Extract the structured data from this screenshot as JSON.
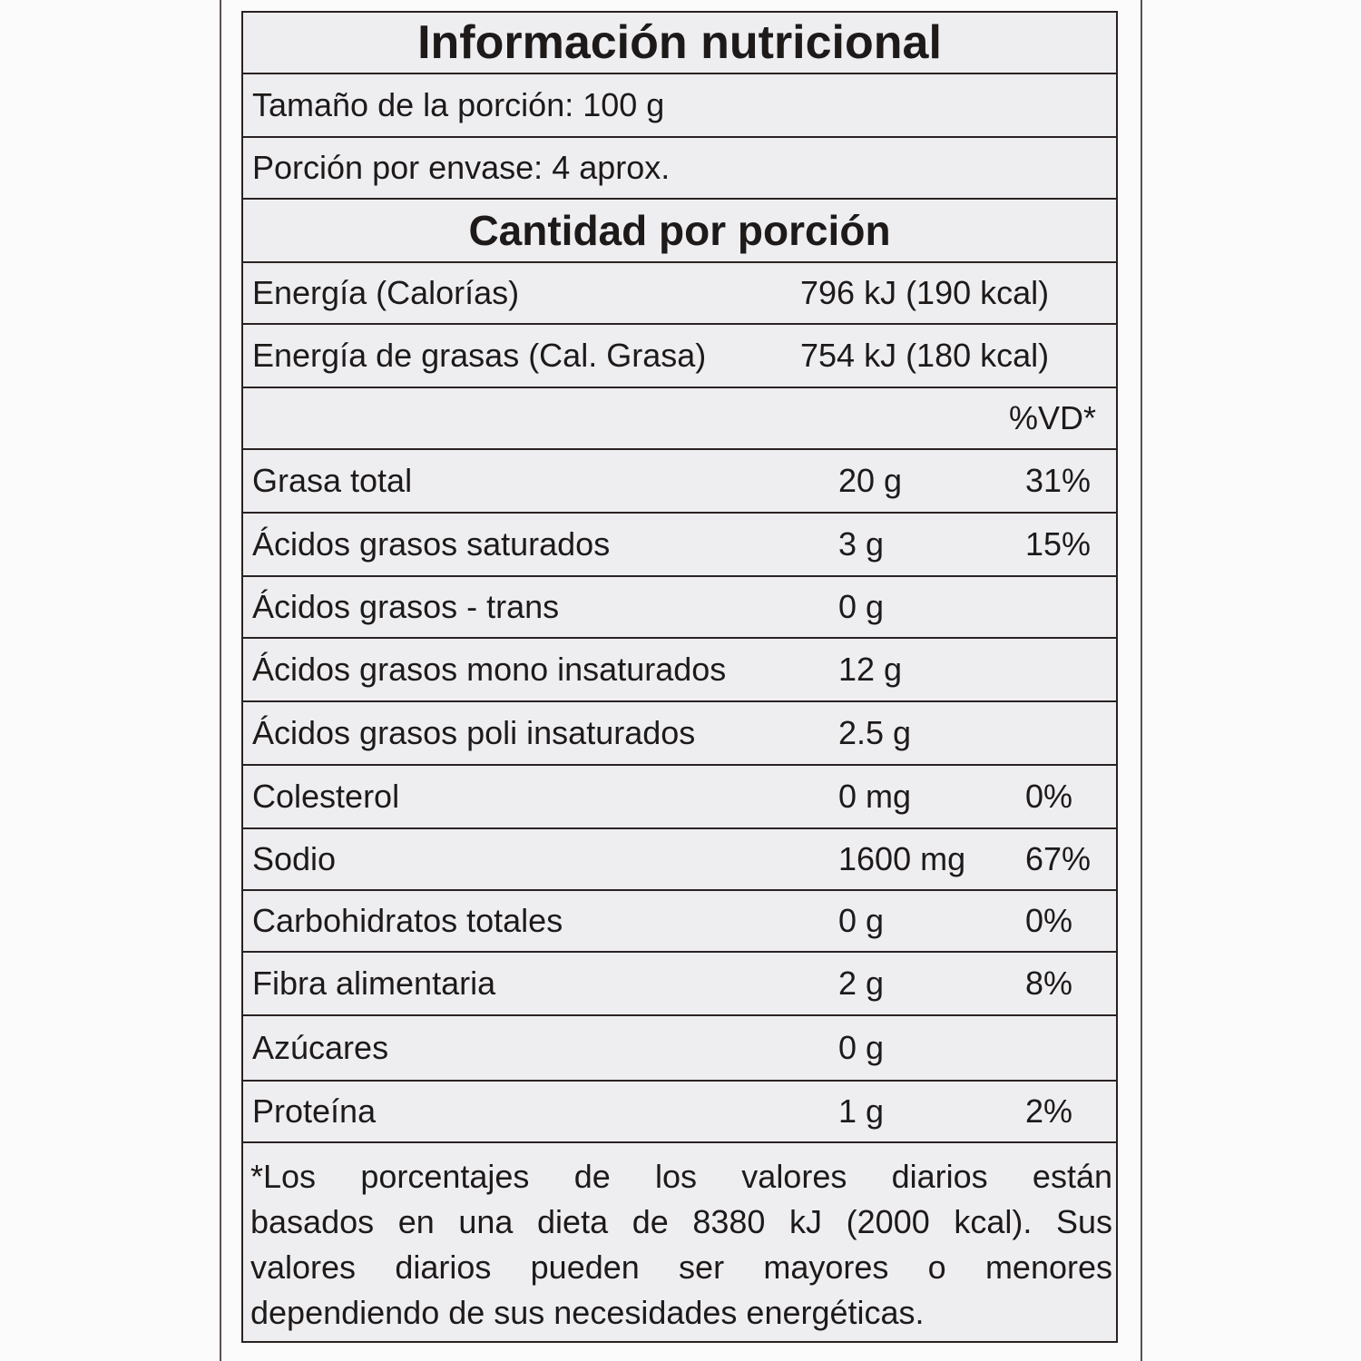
{
  "title": "Información nutricional",
  "serving_size": "Tamaño de la porción: 100 g",
  "servings_per_container": "Porción por envase: 4 aprox.",
  "amount_header": "Cantidad por porción",
  "energy": [
    {
      "label": "Energía (Calorías)",
      "value": "796 kJ (190 kcal)"
    },
    {
      "label": "Energía de grasas (Cal. Grasa)",
      "value": "754 kJ (180 kcal)"
    }
  ],
  "dv_header": "%VD*",
  "nutrients": [
    {
      "label": "Grasa total",
      "amount": "20 g",
      "dv": "31%"
    },
    {
      "label": "Ácidos grasos saturados",
      "amount": "3 g",
      "dv": "15%"
    },
    {
      "label": "Ácidos grasos - trans",
      "amount": "0 g",
      "dv": ""
    },
    {
      "label": "Ácidos grasos mono insaturados",
      "amount": "12 g",
      "dv": ""
    },
    {
      "label": "Ácidos grasos poli insaturados",
      "amount": "2.5 g",
      "dv": ""
    },
    {
      "label": "Colesterol",
      "amount": "0 mg",
      "dv": "0%"
    },
    {
      "label": "Sodio",
      "amount": "1600 mg",
      "dv": "67%"
    },
    {
      "label": "Carbohidratos totales",
      "amount": "0 g",
      "dv": "0%"
    },
    {
      "label": "Fibra alimentaria",
      "amount": "2 g",
      "dv": "8%"
    },
    {
      "label": "Azúcares",
      "amount": "0 g",
      "dv": ""
    },
    {
      "label": "Proteína",
      "amount": "1 g",
      "dv": "2%"
    }
  ],
  "footnote": [
    "*Los porcentajes de los valores diarios están",
    "basados en una dieta de 8380 kJ (2000 kcal). Sus",
    "valores diarios pueden ser mayores o menores",
    "dependiendo de sus necesidades energéticas."
  ]
}
